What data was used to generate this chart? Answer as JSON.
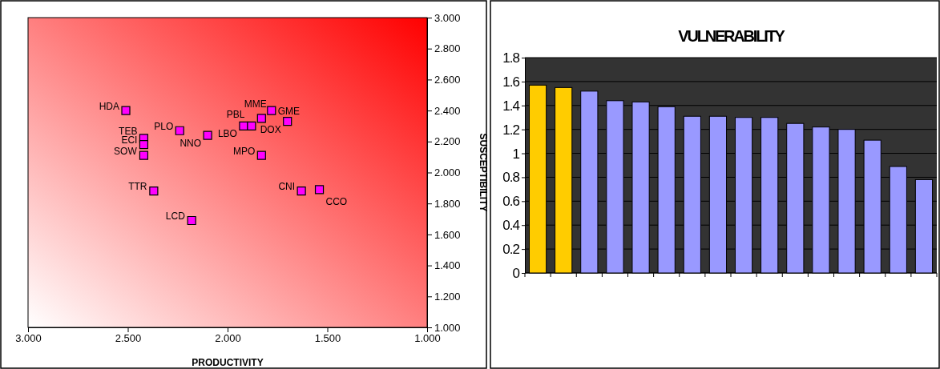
{
  "chart_data": [
    {
      "type": "scatter",
      "xlabel": "PRODUCTIVITY",
      "ylabel": "SUSCEPTIBILITY",
      "marker": "square",
      "series": [
        {
          "color": "#ff00ff",
          "x": [
            2.51,
            2.24,
            2.42,
            2.42,
            2.42,
            2.1,
            2.37,
            2.18,
            1.92,
            1.88,
            1.83,
            1.78,
            1.7,
            1.83,
            1.63,
            1.54
          ],
          "values": [
            2.4,
            2.27,
            2.22,
            2.18,
            2.11,
            2.24,
            1.88,
            1.69,
            2.3,
            2.3,
            2.35,
            2.4,
            2.33,
            2.11,
            1.88,
            1.89
          ]
        }
      ],
      "xlim": [
        3,
        1
      ],
      "ylim": [
        1,
        3
      ],
      "xticks": [
        {
          "value": 3,
          "label": "3.000"
        },
        {
          "value": 2.5,
          "label": "2.500"
        },
        {
          "value": 2,
          "label": "2.000"
        },
        {
          "value": 1.5,
          "label": "1.500"
        },
        {
          "value": 1,
          "label": "1.000"
        }
      ],
      "yticks": [
        {
          "value": 1,
          "label": "1.000"
        },
        {
          "value": 1.2,
          "label": "1.200"
        },
        {
          "value": 1.4,
          "label": "1.400"
        },
        {
          "value": 1.6,
          "label": "1.600"
        },
        {
          "value": 1.8,
          "label": "1.800"
        },
        {
          "value": 2,
          "label": "2.000"
        },
        {
          "value": 2.2,
          "label": "2.200"
        },
        {
          "value": 2.4,
          "label": "2.400"
        },
        {
          "value": 2.6,
          "label": "2.600"
        },
        {
          "value": 2.8,
          "label": "2.800"
        },
        {
          "value": 3,
          "label": "3.000"
        }
      ],
      "annotations": [
        {
          "text": "HDA",
          "x": 2.51,
          "y": 2.4
        },
        {
          "text": "PLO",
          "x": 2.24,
          "y": 2.27
        },
        {
          "text": "TEB",
          "x": 2.42,
          "y": 2.22
        },
        {
          "text": "ECI",
          "x": 2.42,
          "y": 2.18
        },
        {
          "text": "SOW",
          "x": 2.42,
          "y": 2.11
        },
        {
          "text": "NNO",
          "x": 2.1,
          "y": 2.24
        },
        {
          "text": "TTR",
          "x": 2.37,
          "y": 1.88
        },
        {
          "text": "LCD",
          "x": 2.18,
          "y": 1.69
        },
        {
          "text": "LBO",
          "x": 1.92,
          "y": 2.3
        },
        {
          "text": "PBL",
          "x": 1.88,
          "y": 2.3
        },
        {
          "text": "MME",
          "x": 1.83,
          "y": 2.35
        },
        {
          "text": "GME",
          "x": 1.78,
          "y": 2.4
        },
        {
          "text": "DOX",
          "x": 1.7,
          "y": 2.33
        },
        {
          "text": "MPO",
          "x": 1.83,
          "y": 2.11
        },
        {
          "text": "CNI",
          "x": 1.63,
          "y": 1.88
        },
        {
          "text": "CCO",
          "x": 1.54,
          "y": 1.89
        }
      ]
    },
    {
      "type": "bar",
      "title": "VULNERABILITY",
      "categories": [
        null,
        null,
        null,
        null,
        null,
        null,
        null,
        null,
        null,
        null,
        null,
        null,
        null,
        null,
        null,
        null
      ],
      "values": [
        1.57,
        1.55,
        1.52,
        1.44,
        1.43,
        1.39,
        1.31,
        1.31,
        1.3,
        1.3,
        1.25,
        1.22,
        1.2,
        1.11,
        0.89,
        0.78
      ],
      "colors": [
        "#ffcc00",
        "#ffcc00",
        "#9999ff",
        "#9999ff",
        "#9999ff",
        "#9999ff",
        "#9999ff",
        "#9999ff",
        "#9999ff",
        "#9999ff",
        "#9999ff",
        "#9999ff",
        "#9999ff",
        "#9999ff",
        "#9999ff",
        "#9999ff"
      ],
      "ylim": [
        0,
        1.8
      ],
      "yticks": [
        0,
        0.2,
        0.4,
        0.6,
        0.8,
        1,
        1.2,
        1.4,
        1.6,
        1.8
      ],
      "grid": "y"
    }
  ]
}
